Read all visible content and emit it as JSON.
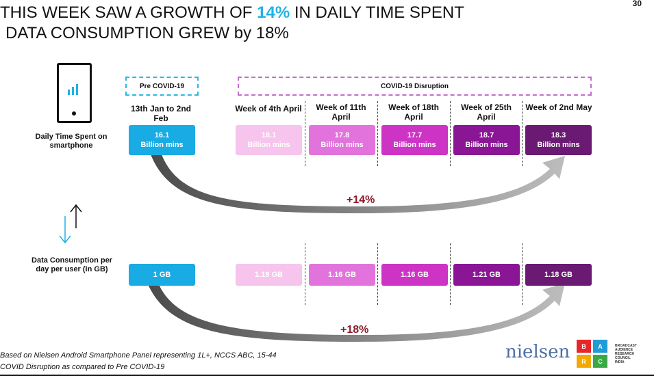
{
  "header": {
    "title_line1_before": "THIS WEEK SAW A GROWTH OF ",
    "title_highlight": "14%",
    "title_line1_after": " IN DAILY TIME SPENT",
    "title_line2": "DATA CONSUMPTION GREW by 18%",
    "page_number": "30"
  },
  "periods": {
    "pre_covid": "Pre COVID-19",
    "covid": "COVID-19 Disruption"
  },
  "columns": [
    {
      "label": "13th Jan to 2nd Feb",
      "time": "16.1",
      "data": "1 GB",
      "color": "#19ace4"
    },
    {
      "label": "Week of 4th April",
      "time": "18.1",
      "data": "1.19 GB",
      "color": "#f6c4ec"
    },
    {
      "label": "Week of 11th April",
      "time": "17.8",
      "data": "1.16 GB",
      "color": "#e373dc"
    },
    {
      "label": "Week of 18th April",
      "time": "17.7",
      "data": "1.16 GB",
      "color": "#cd34c6"
    },
    {
      "label": "Week of 25th April",
      "time": "18.7",
      "data": "1.21 GB",
      "color": "#8a1696"
    },
    {
      "label": "Week of 2nd May",
      "time": "18.3",
      "data": "1.18 GB",
      "color": "#6a1a72"
    }
  ],
  "unit": "Billion mins",
  "rows": {
    "time_label": "Daily Time Spent on smartphone",
    "data_label": "Data Consumption per day per user (in GB)"
  },
  "growth": {
    "time": "+14%",
    "data": "+18%"
  },
  "footer": {
    "line1": "Based on Nielsen Android Smartphone Panel representing 1L+, NCCS ABC, 15-44",
    "line2": "COVID Disruption  as compared to Pre COVID-19"
  },
  "logos": {
    "nielsen": "nielsen",
    "barc_letters": [
      "B",
      "A",
      "R",
      "C"
    ],
    "barc_text": [
      "BROADCAST",
      "AUDIENCE",
      "RESEARCH",
      "COUNCIL",
      "INDIA"
    ]
  },
  "icons": [
    "phone-chart-icon",
    "up-down-arrows-icon",
    "curved-arrow-icon"
  ]
}
